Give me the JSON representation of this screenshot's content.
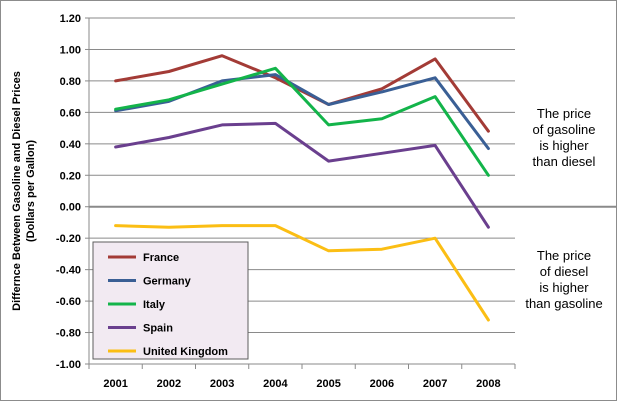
{
  "chart_data": {
    "type": "line",
    "title": "",
    "xlabel": "",
    "ylabel": "Difference Between Gasoline and Diesel Prices (Dollars per Gallon)",
    "ylabel_lines": [
      "Differnce Between Gasoline  and Diesel Prices",
      "(Dollars per Gallon)"
    ],
    "ylim": [
      -1.0,
      1.2
    ],
    "yticks": [
      "1.20",
      "1.00",
      "0.80",
      "0.60",
      "0.40",
      "0.20",
      "0.00",
      "-0.20",
      "-0.40",
      "-0.60",
      "-0.80",
      "-1.00"
    ],
    "ytick_values": [
      1.2,
      1.0,
      0.8,
      0.6,
      0.4,
      0.2,
      0.0,
      -0.2,
      -0.4,
      -0.6,
      -0.8,
      -1.0
    ],
    "categories": [
      "2001",
      "2002",
      "2003",
      "2004",
      "2005",
      "2006",
      "2007",
      "2008"
    ],
    "grid": true,
    "legend_position": "bottom-left",
    "series": [
      {
        "name": "France",
        "color": "#a33b36",
        "values": [
          0.8,
          0.86,
          0.96,
          0.82,
          0.65,
          0.75,
          0.94,
          0.48
        ]
      },
      {
        "name": "Germany",
        "color": "#3a5f95",
        "values": [
          0.61,
          0.67,
          0.8,
          0.84,
          0.65,
          0.73,
          0.82,
          0.37
        ]
      },
      {
        "name": "Italy",
        "color": "#13b44a",
        "values": [
          0.62,
          0.68,
          0.78,
          0.88,
          0.52,
          0.56,
          0.7,
          0.2
        ]
      },
      {
        "name": "Spain",
        "color": "#6a3f8e",
        "values": [
          0.38,
          0.44,
          0.52,
          0.53,
          0.29,
          0.34,
          0.39,
          -0.13
        ]
      },
      {
        "name": "United Kingdom",
        "color": "#fbbe14",
        "values": [
          -0.12,
          -0.13,
          -0.12,
          -0.12,
          -0.28,
          -0.27,
          -0.2,
          -0.72
        ]
      }
    ],
    "annotations": [
      {
        "lines": [
          "The price",
          "of gasoline",
          "is higher",
          "than diesel"
        ]
      },
      {
        "lines": [
          "The price",
          "of diesel",
          "is higher",
          "than gasoline"
        ]
      }
    ]
  }
}
